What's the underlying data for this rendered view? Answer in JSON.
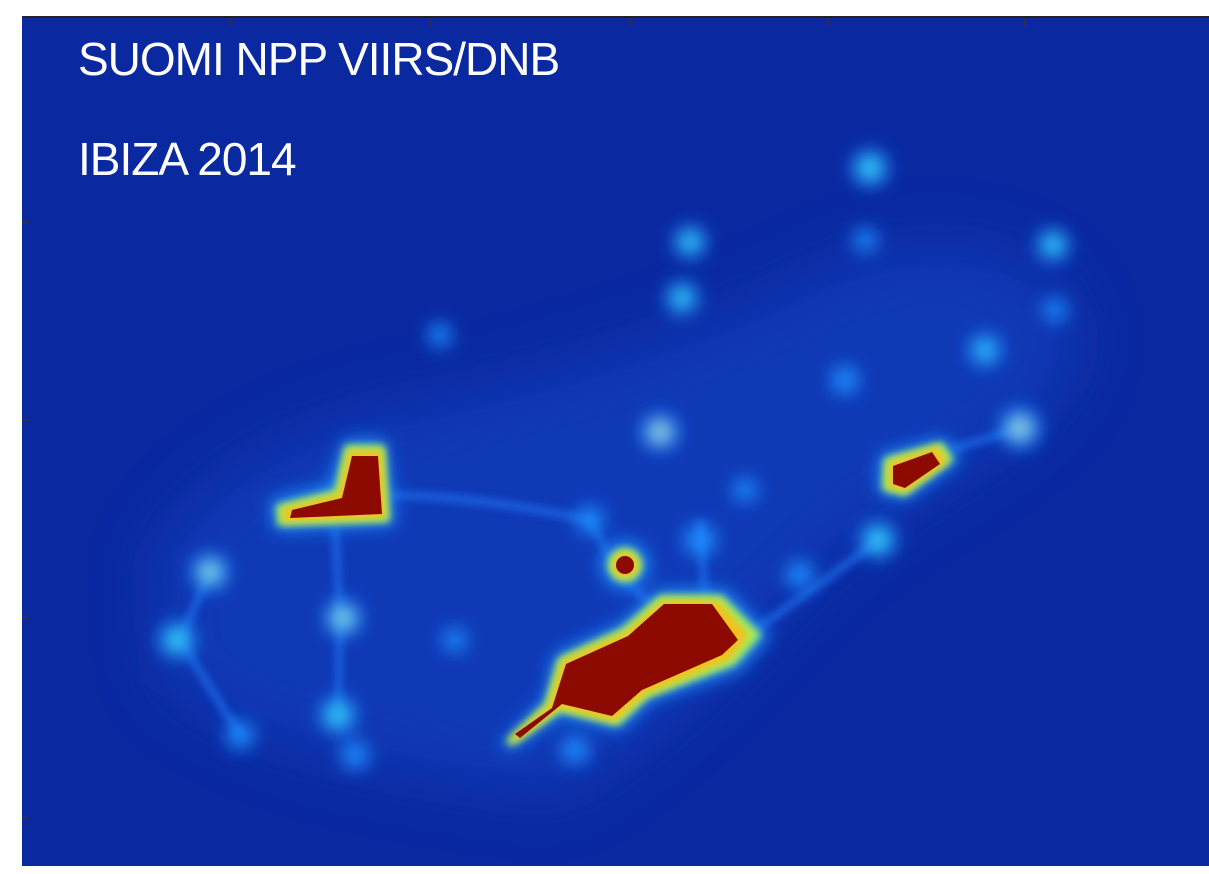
{
  "title": "SUOMI NPP VIIRS/DNB",
  "subtitle": "IBIZA 2014"
}
